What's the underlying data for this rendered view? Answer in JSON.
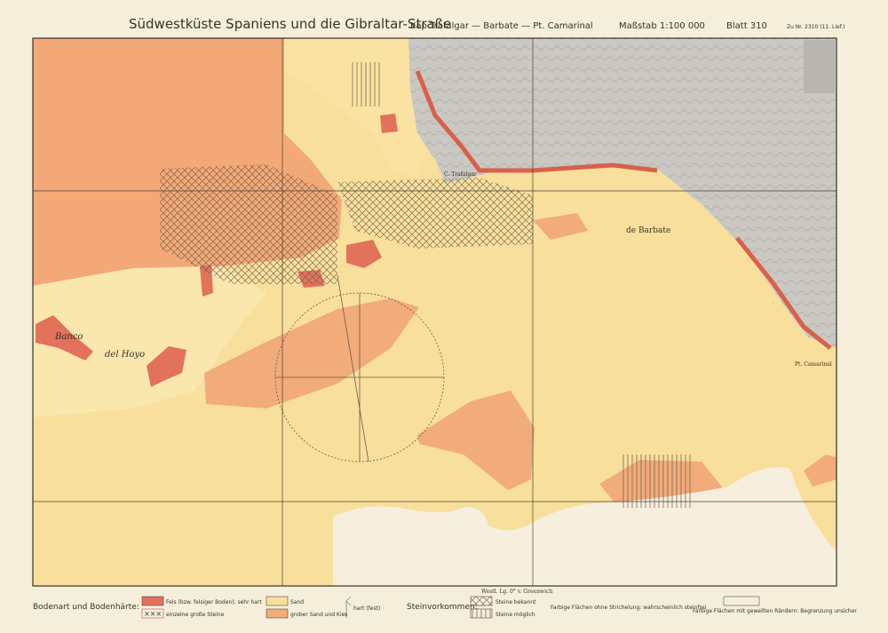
{
  "header": {
    "title": "Südwestküste Spaniens und die Gibraltar-Straße",
    "section": "Kap Trafalgar — Barbate — Pt. Camarinal",
    "scale": "Maßstab 1:100 000",
    "sheet": "Blatt 310",
    "reference": "Zu Nr. 2310 (11. Lief.)"
  },
  "map_labels": {
    "bank_1": "Banco",
    "bank_2": "del Hoyo",
    "barbate": "de Barbate",
    "trafalgar": "C. Trafalgar",
    "camarinal": "Pt. Camarinal",
    "meridian": "Westl. Lg. 0° v. Greenwich"
  },
  "legend": {
    "title": "Bodenart und Bodenhärte:",
    "rock": "Fels (bzw. felsiger Boden); sehr hart",
    "boulders": "einzelne große Steine",
    "sand": "Sand",
    "gravel": "grober Sand und Kies",
    "hard": "hart (fest)",
    "stones_title": "Steinvorkommen:",
    "stones_known": "Steine bekannt",
    "stones_possible": "Steine möglich",
    "note_plain": "Farbige Flächen ohne Strichelung: wahrscheinlich steinfrei",
    "note_wavy": "Farbige Flächen mit gewellten Rändern: Begrenzung unsicher"
  }
}
